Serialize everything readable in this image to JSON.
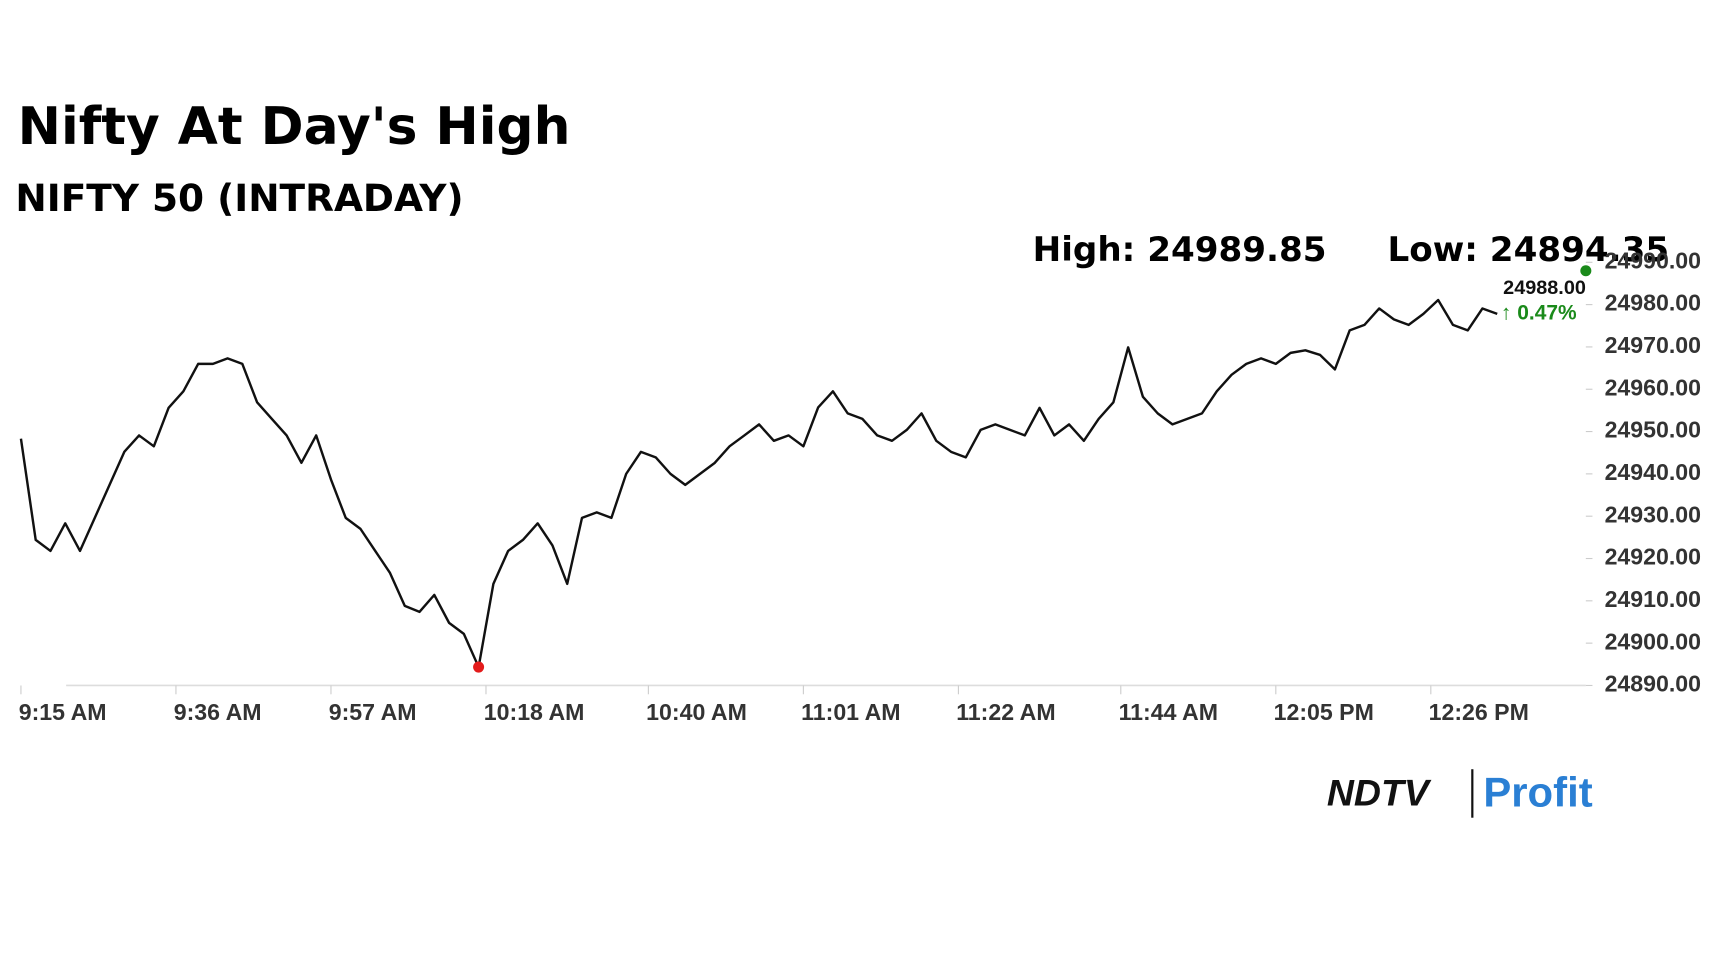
{
  "chart_data": {
    "type": "line",
    "title": "Nifty At Day's High",
    "subtitle": "NIFTY 50 (INTRADAY)",
    "high_text": "High: 24989.85",
    "low_text": "Low: 24894.35",
    "last_text": "24988.00",
    "change_text": "↑ 0.47%",
    "change_color": "#1a8a1a",
    "brand": [
      "NDTV",
      "Profit"
    ],
    "x": [
      555,
      557,
      559,
      561,
      563,
      565,
      567,
      569,
      571,
      573,
      575,
      577,
      579,
      581,
      583,
      585,
      587,
      589,
      591,
      593,
      595,
      597,
      599,
      601,
      603,
      605,
      607,
      609,
      611,
      613,
      615,
      617,
      619,
      621,
      623,
      625,
      627,
      629,
      631,
      633,
      635,
      637,
      639,
      641,
      643,
      645,
      647,
      649,
      651,
      653,
      655,
      657,
      659,
      661,
      663,
      665,
      667,
      669,
      671,
      673,
      675,
      677,
      679,
      681,
      683,
      685,
      687,
      689,
      691,
      693,
      695,
      697,
      699,
      701,
      703,
      705,
      707,
      709,
      711,
      713,
      715,
      717,
      719,
      721,
      723,
      725,
      727,
      729,
      731,
      733,
      735,
      737,
      739,
      741,
      743,
      745,
      747,
      749,
      751,
      753,
      755
    ],
    "series": [
      {
        "name": "NIFTY 50",
        "color": "#111111",
        "values": [
          24948.3,
          24924.4,
          24921.8,
          24928.3,
          24921.8,
          24929.6,
          24937.4,
          24945.2,
          24949.1,
          24946.5,
          24955.6,
          24959.5,
          24966.0,
          24966.0,
          24967.3,
          24966.0,
          24956.9,
          24953.0,
          24949.1,
          24942.6,
          24949.1,
          24938.7,
          24929.6,
          24927.0,
          24921.8,
          24916.6,
          24908.8,
          24907.4,
          24911.4,
          24904.8,
          24902.2,
          24894.35,
          24914.0,
          24921.8,
          24924.4,
          24928.3,
          24923.1,
          24914.0,
          24929.6,
          24930.9,
          24929.6,
          24940.0,
          24945.2,
          24943.9,
          24940.0,
          24937.4,
          24940.0,
          24942.6,
          24946.5,
          24949.1,
          24951.7,
          24947.8,
          24949.1,
          24946.5,
          24955.7,
          24959.5,
          24954.3,
          24953.0,
          24949.1,
          24947.8,
          24950.4,
          24954.3,
          24947.8,
          24945.2,
          24943.9,
          24950.4,
          24951.7,
          24950.4,
          24949.1,
          24955.6,
          24949.1,
          24951.7,
          24947.8,
          24953.0,
          24956.9,
          24969.9,
          24958.2,
          24954.3,
          24951.7,
          24953.0,
          24954.3,
          24959.5,
          24963.4,
          24966.0,
          24967.3,
          24966.0,
          24968.6,
          24969.2,
          24968.1,
          24964.7,
          24973.9,
          24975.2,
          24979.1,
          24976.5,
          24975.2,
          24977.8,
          24981.1,
          24975.2,
          24973.9,
          24979.1,
          24977.8
        ]
      }
    ],
    "markers": [
      {
        "x": 617,
        "y": 24894.35,
        "color": "#e31b1b"
      },
      {
        "x": 767,
        "y": 24988,
        "color": "#1a8a1a"
      }
    ],
    "xlim": [
      555,
      767
    ],
    "xticks": [
      {
        "value": 555,
        "label": "9:15 AM"
      },
      {
        "value": 576,
        "label": "9:36 AM"
      },
      {
        "value": 597,
        "label": "9:57 AM"
      },
      {
        "value": 618,
        "label": "10:18 AM"
      },
      {
        "value": 640,
        "label": "10:40 AM"
      },
      {
        "value": 661,
        "label": "11:01 AM"
      },
      {
        "value": 682,
        "label": "11:22 AM"
      },
      {
        "value": 704,
        "label": "11:44 AM"
      },
      {
        "value": 725,
        "label": "12:05 PM"
      },
      {
        "value": 746,
        "label": "12:26 PM"
      }
    ],
    "ylim": [
      24890,
      24990
    ],
    "yticks": [
      {
        "value": 24890,
        "label": "24890.00"
      },
      {
        "value": 24900,
        "label": "24900.00"
      },
      {
        "value": 24910,
        "label": "24910.00"
      },
      {
        "value": 24920,
        "label": "24920.00"
      },
      {
        "value": 24930,
        "label": "24930.00"
      },
      {
        "value": 24940,
        "label": "24940.00"
      },
      {
        "value": 24950,
        "label": "24950.00"
      },
      {
        "value": 24960,
        "label": "24960.00"
      },
      {
        "value": 24970,
        "label": "24970.00"
      },
      {
        "value": 24980,
        "label": "24980.00"
      },
      {
        "value": 24990,
        "label": "24990.00"
      }
    ]
  }
}
